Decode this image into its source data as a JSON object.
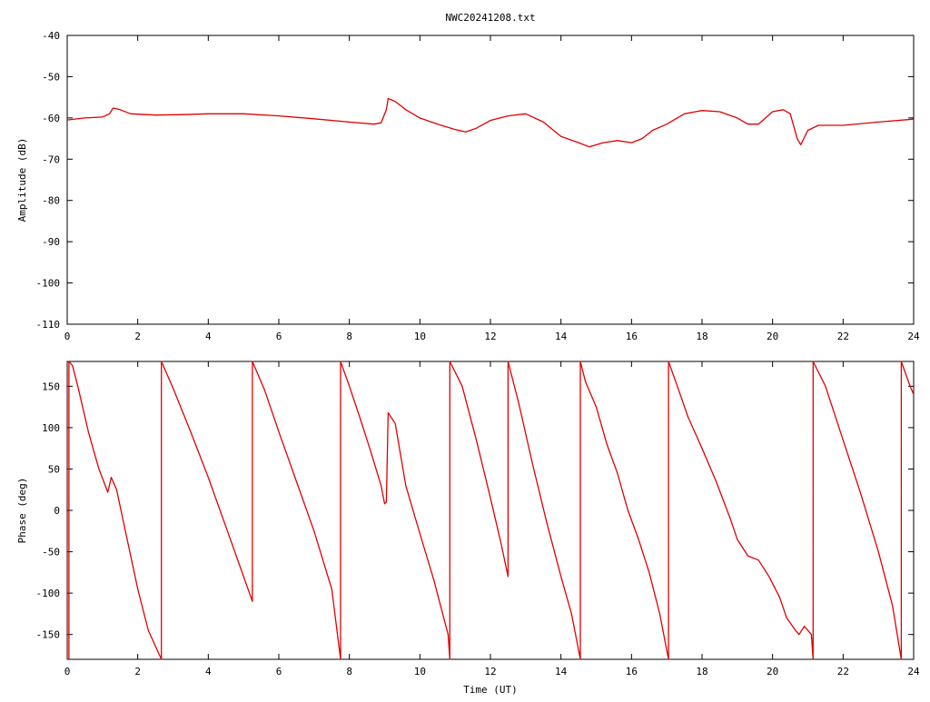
{
  "chart_data": [
    {
      "type": "line",
      "title": "NWC20241208.txt",
      "xlabel": "",
      "ylabel": "Amplitude (dB)",
      "xlim": [
        0,
        24
      ],
      "ylim": [
        -110,
        -40
      ],
      "xticks": [
        "0",
        "2",
        "4",
        "6",
        "8",
        "10",
        "12",
        "14",
        "16",
        "18",
        "20",
        "22",
        "24"
      ],
      "yticks": [
        "-40",
        "-50",
        "-60",
        "-70",
        "-80",
        "-90",
        "-100",
        "-110"
      ],
      "grid": false,
      "color": "#e00000",
      "series": [
        {
          "x": [
            0,
            0.5,
            1.0,
            1.2,
            1.3,
            1.5,
            1.8,
            2.5,
            3.3,
            4.0,
            5.0,
            6.0,
            7.0,
            8.0,
            8.7,
            8.9,
            9.05,
            9.1,
            9.3,
            9.6,
            10.0,
            10.5,
            11.0,
            11.3,
            11.6,
            12.0,
            12.5,
            13.0,
            13.5,
            14.0,
            14.5,
            14.8,
            15.2,
            15.6,
            16.0,
            16.3,
            16.6,
            17.0,
            17.5,
            18.0,
            18.5,
            19.0,
            19.3,
            19.6,
            20.0,
            20.3,
            20.5,
            20.7,
            20.8,
            21.0,
            21.3,
            22.0,
            23.0,
            24.0
          ],
          "y": [
            -60.5,
            -60,
            -59.8,
            -59,
            -57.6,
            -58,
            -59,
            -59.3,
            -59.2,
            -59,
            -59,
            -59.5,
            -60.2,
            -61,
            -61.5,
            -61.2,
            -58,
            -55.3,
            -56,
            -58,
            -60,
            -61.5,
            -62.8,
            -63.4,
            -62.5,
            -60.6,
            -59.5,
            -59,
            -61,
            -64.5,
            -66,
            -67,
            -66,
            -65.5,
            -66,
            -65,
            -63,
            -61.5,
            -59,
            -58.2,
            -58.5,
            -60,
            -61.5,
            -61.5,
            -58.5,
            -58,
            -59,
            -65,
            -66.5,
            -63,
            -61.8,
            -61.8,
            -61,
            -60.3
          ]
        }
      ]
    },
    {
      "type": "line",
      "title": "",
      "xlabel": "Time (UT)",
      "ylabel": "Phase (deg)",
      "xlim": [
        0,
        24
      ],
      "ylim": [
        -180,
        180
      ],
      "xticks": [
        "0",
        "2",
        "4",
        "6",
        "8",
        "10",
        "12",
        "14",
        "16",
        "18",
        "20",
        "22",
        "24"
      ],
      "yticks": [
        "150",
        "100",
        "50",
        "0",
        "-50",
        "-100",
        "-150"
      ],
      "grid": false,
      "color": "#e00000",
      "series": [
        {
          "x": [
            0,
            0.05,
            0.05,
            0.15,
            0.3,
            0.6,
            0.9,
            1.15,
            1.25,
            1.4,
            1.7,
            2.0,
            2.3,
            2.67,
            2.67,
            3.0,
            3.5,
            4.0,
            4.5,
            5.0,
            5.25,
            5.25,
            5.6,
            6.0,
            6.5,
            7.0,
            7.5,
            7.75,
            7.75,
            8.0,
            8.3,
            8.6,
            8.9,
            9.0,
            9.05,
            9.1,
            9.3,
            9.6,
            10.0,
            10.4,
            10.8,
            10.85,
            10.85,
            11.2,
            11.6,
            12.0,
            12.3,
            12.5,
            12.5,
            12.8,
            13.2,
            13.6,
            14.0,
            14.3,
            14.55,
            14.55,
            14.7,
            15.0,
            15.3,
            15.6,
            15.9,
            16.2,
            16.5,
            16.8,
            17.05,
            17.05,
            17.3,
            17.6,
            18.0,
            18.4,
            18.8,
            19.0,
            19.3,
            19.6,
            19.9,
            20.2,
            20.4,
            20.65,
            20.75,
            20.9,
            21.1,
            21.15,
            21.15,
            21.5,
            22.0,
            22.5,
            23.0,
            23.4,
            23.65,
            23.65,
            23.9,
            24.0
          ],
          "y": [
            -180,
            -180,
            180,
            175,
            150,
            95,
            50,
            22,
            40,
            25,
            -35,
            -95,
            -145,
            -180,
            180,
            148,
            95,
            40,
            -20,
            -80,
            -110,
            180,
            145,
            95,
            35,
            -25,
            -95,
            -180,
            180,
            150,
            112,
            72,
            30,
            8,
            10,
            118,
            105,
            30,
            -28,
            -85,
            -150,
            -180,
            180,
            150,
            85,
            15,
            -40,
            -80,
            180,
            130,
            55,
            -15,
            -80,
            -125,
            -180,
            180,
            155,
            125,
            80,
            45,
            0,
            -35,
            -75,
            -125,
            -180,
            180,
            150,
            113,
            75,
            35,
            -10,
            -35,
            -55,
            -60,
            -80,
            -105,
            -130,
            -145,
            -150,
            -140,
            -150,
            -180,
            180,
            150,
            85,
            20,
            -50,
            -115,
            -180,
            180,
            150,
            140
          ]
        }
      ]
    }
  ]
}
